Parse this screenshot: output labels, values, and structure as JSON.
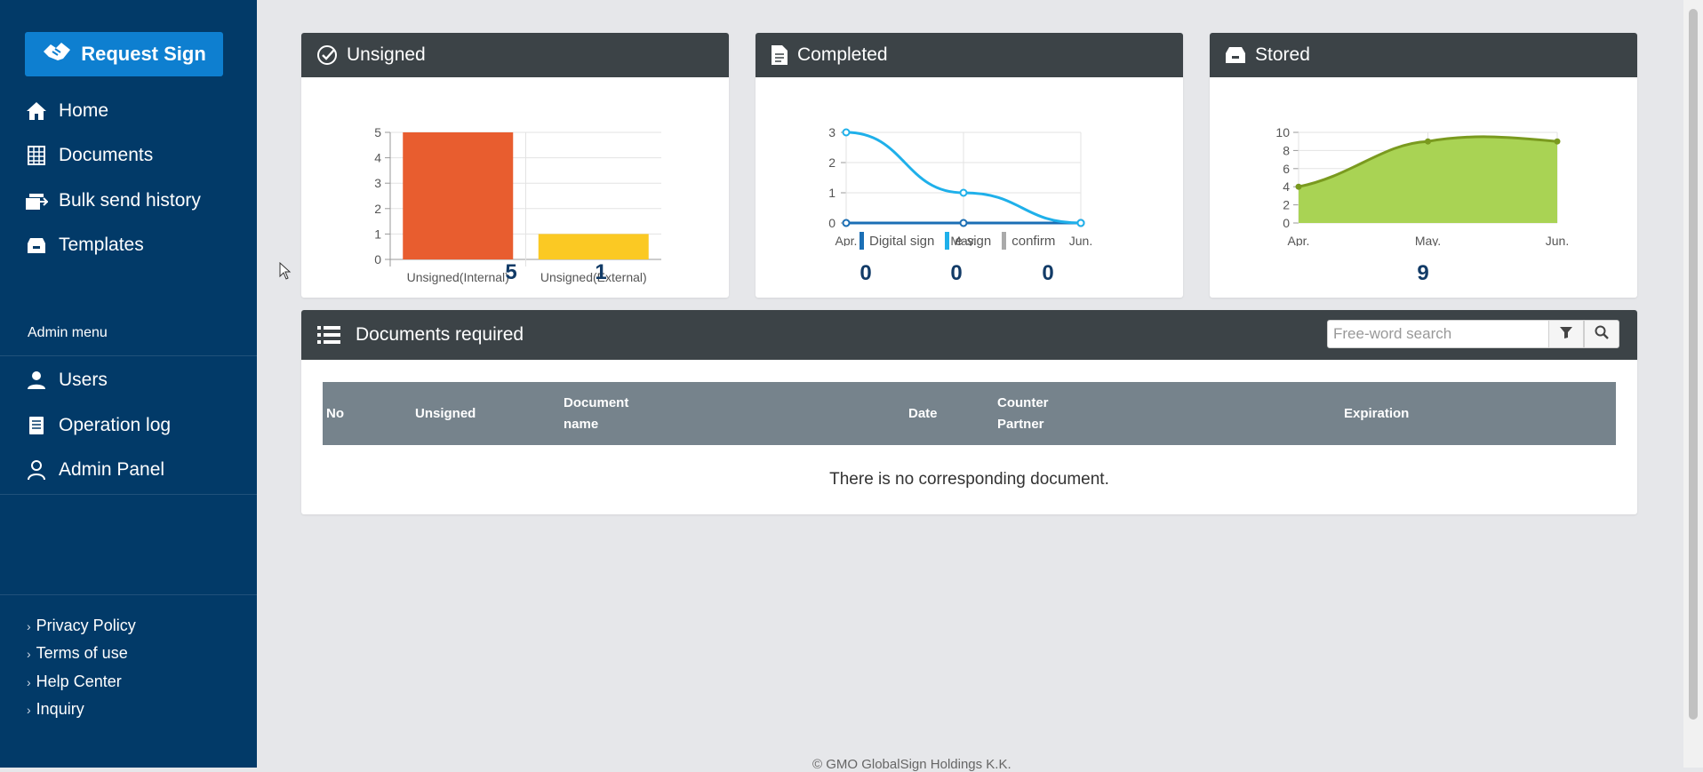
{
  "sidebar": {
    "request_button": "Request Sign",
    "nav": [
      {
        "label": "Home",
        "icon": "home-icon"
      },
      {
        "label": "Documents",
        "icon": "grid-icon"
      },
      {
        "label": "Bulk send history",
        "icon": "bulk-send-icon"
      },
      {
        "label": "Templates",
        "icon": "archive-icon"
      }
    ],
    "admin_title": "Admin menu",
    "admin_nav": [
      {
        "label": "Users",
        "icon": "user-icon"
      },
      {
        "label": "Operation log",
        "icon": "log-icon"
      },
      {
        "label": "Admin Panel",
        "icon": "admin-icon"
      }
    ],
    "footer_links": [
      "Privacy Policy",
      "Terms of use",
      "Help Center",
      "Inquiry"
    ]
  },
  "cards": {
    "unsigned": {
      "title": "Unsigned",
      "counts": [
        "5",
        "1"
      ]
    },
    "completed": {
      "title": "Completed",
      "counts": [
        "0",
        "0",
        "0"
      ]
    },
    "stored": {
      "title": "Stored",
      "count": "9"
    }
  },
  "chart_data": [
    {
      "type": "bar",
      "categories": [
        "Unsigned(Internal)",
        "Unsigned(External)"
      ],
      "values": [
        5,
        1
      ],
      "colors": [
        "#e85d2f",
        "#fbc923"
      ],
      "ylim": [
        0,
        5
      ],
      "yticks": [
        "0",
        "1",
        "2",
        "3",
        "4",
        "5"
      ]
    },
    {
      "type": "line",
      "categories": [
        "Apr.",
        "May.",
        "Jun."
      ],
      "series": [
        {
          "name": "Digital sign",
          "values": [
            0,
            0,
            0
          ],
          "color": "#1b6fb5"
        },
        {
          "name": "e-sign",
          "values": [
            3,
            1,
            0
          ],
          "color": "#1fb0ea"
        },
        {
          "name": "confirm",
          "values": [
            0,
            0,
            0
          ],
          "color": "#aaaaaa"
        }
      ],
      "ylim": [
        0,
        3
      ],
      "yticks": [
        "0",
        "1",
        "2",
        "3"
      ]
    },
    {
      "type": "area",
      "categories": [
        "Apr.",
        "May.",
        "Jun."
      ],
      "values": [
        4,
        9,
        9
      ],
      "color": "#7a9a1f",
      "fill": "#a9d354",
      "ylim": [
        0,
        10
      ],
      "yticks": [
        "0",
        "2",
        "4",
        "6",
        "8",
        "10"
      ]
    }
  ],
  "documents": {
    "title": "Documents required",
    "search_placeholder": "Free-word search",
    "columns": {
      "no": "No",
      "unsigned": "Unsigned",
      "doc_name_1": "Document",
      "doc_name_2": "name",
      "date": "Date",
      "partner_1": "Counter",
      "partner_2": "Partner",
      "expiration": "Expiration"
    },
    "empty_message": "There is no corresponding document."
  },
  "footer": {
    "copyright": "© GMO GlobalSign Holdings K.K."
  }
}
